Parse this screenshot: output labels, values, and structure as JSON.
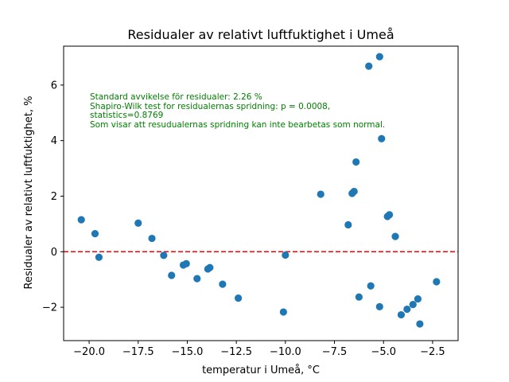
{
  "chart_data": {
    "type": "scatter",
    "title": "Residualer av relativt luftfuktighet i Umeå",
    "xlabel": "temperatur i Umeå, °C",
    "ylabel": "Residualer av relativt luftfuktighet, %",
    "xlim": [
      -21.3,
      -1.2
    ],
    "ylim": [
      -3.2,
      7.4
    ],
    "xticks": [
      -20.0,
      -17.5,
      -15.0,
      -12.5,
      -10.0,
      -7.5,
      -5.0,
      -2.5
    ],
    "xtick_labels": [
      "−20.0",
      "−17.5",
      "−15.0",
      "−12.5",
      "−10.0",
      "−7.5",
      "−5.0",
      "−2.5"
    ],
    "yticks": [
      -2,
      0,
      2,
      4,
      6
    ],
    "ytick_labels": [
      "−2",
      "0",
      "2",
      "4",
      "6"
    ],
    "grid": false,
    "point_color": "#1f77b4",
    "reference_line": {
      "y": 0,
      "color": "#ff0000",
      "style": "dashed"
    },
    "annotation_color": "#008000",
    "annotation_lines": [
      "Standard avvikelse för residualer: 2.26 %",
      "Shapiro-Wilk test for residualernas spridning: p = 0.0008,",
      "statistics=0.8769",
      "Som visar att resudualernas spridning kan inte bearbetas som normal."
    ],
    "points": [
      {
        "x": -20.4,
        "y": 1.15
      },
      {
        "x": -19.7,
        "y": 0.65
      },
      {
        "x": -19.5,
        "y": -0.2
      },
      {
        "x": -17.5,
        "y": 1.03
      },
      {
        "x": -16.8,
        "y": 0.48
      },
      {
        "x": -16.2,
        "y": -0.13
      },
      {
        "x": -15.8,
        "y": -0.85
      },
      {
        "x": -15.2,
        "y": -0.48
      },
      {
        "x": -15.05,
        "y": -0.43
      },
      {
        "x": -14.5,
        "y": -0.97
      },
      {
        "x": -13.95,
        "y": -0.62
      },
      {
        "x": -13.85,
        "y": -0.57
      },
      {
        "x": -13.2,
        "y": -1.17
      },
      {
        "x": -12.4,
        "y": -1.67
      },
      {
        "x": -10.1,
        "y": -2.17
      },
      {
        "x": -10.0,
        "y": -0.12
      },
      {
        "x": -8.2,
        "y": 2.07
      },
      {
        "x": -6.8,
        "y": 0.97
      },
      {
        "x": -6.6,
        "y": 2.1
      },
      {
        "x": -6.5,
        "y": 2.17
      },
      {
        "x": -6.4,
        "y": 3.23
      },
      {
        "x": -6.25,
        "y": -1.63
      },
      {
        "x": -5.75,
        "y": 6.68
      },
      {
        "x": -5.65,
        "y": -1.23
      },
      {
        "x": -5.2,
        "y": 7.02
      },
      {
        "x": -5.2,
        "y": -1.98
      },
      {
        "x": -5.1,
        "y": 4.07
      },
      {
        "x": -4.8,
        "y": 1.27
      },
      {
        "x": -4.7,
        "y": 1.33
      },
      {
        "x": -4.4,
        "y": 0.55
      },
      {
        "x": -4.1,
        "y": -2.27
      },
      {
        "x": -3.8,
        "y": -2.07
      },
      {
        "x": -3.5,
        "y": -1.9
      },
      {
        "x": -3.25,
        "y": -1.7
      },
      {
        "x": -3.15,
        "y": -2.6
      },
      {
        "x": -2.3,
        "y": -1.08
      }
    ]
  }
}
